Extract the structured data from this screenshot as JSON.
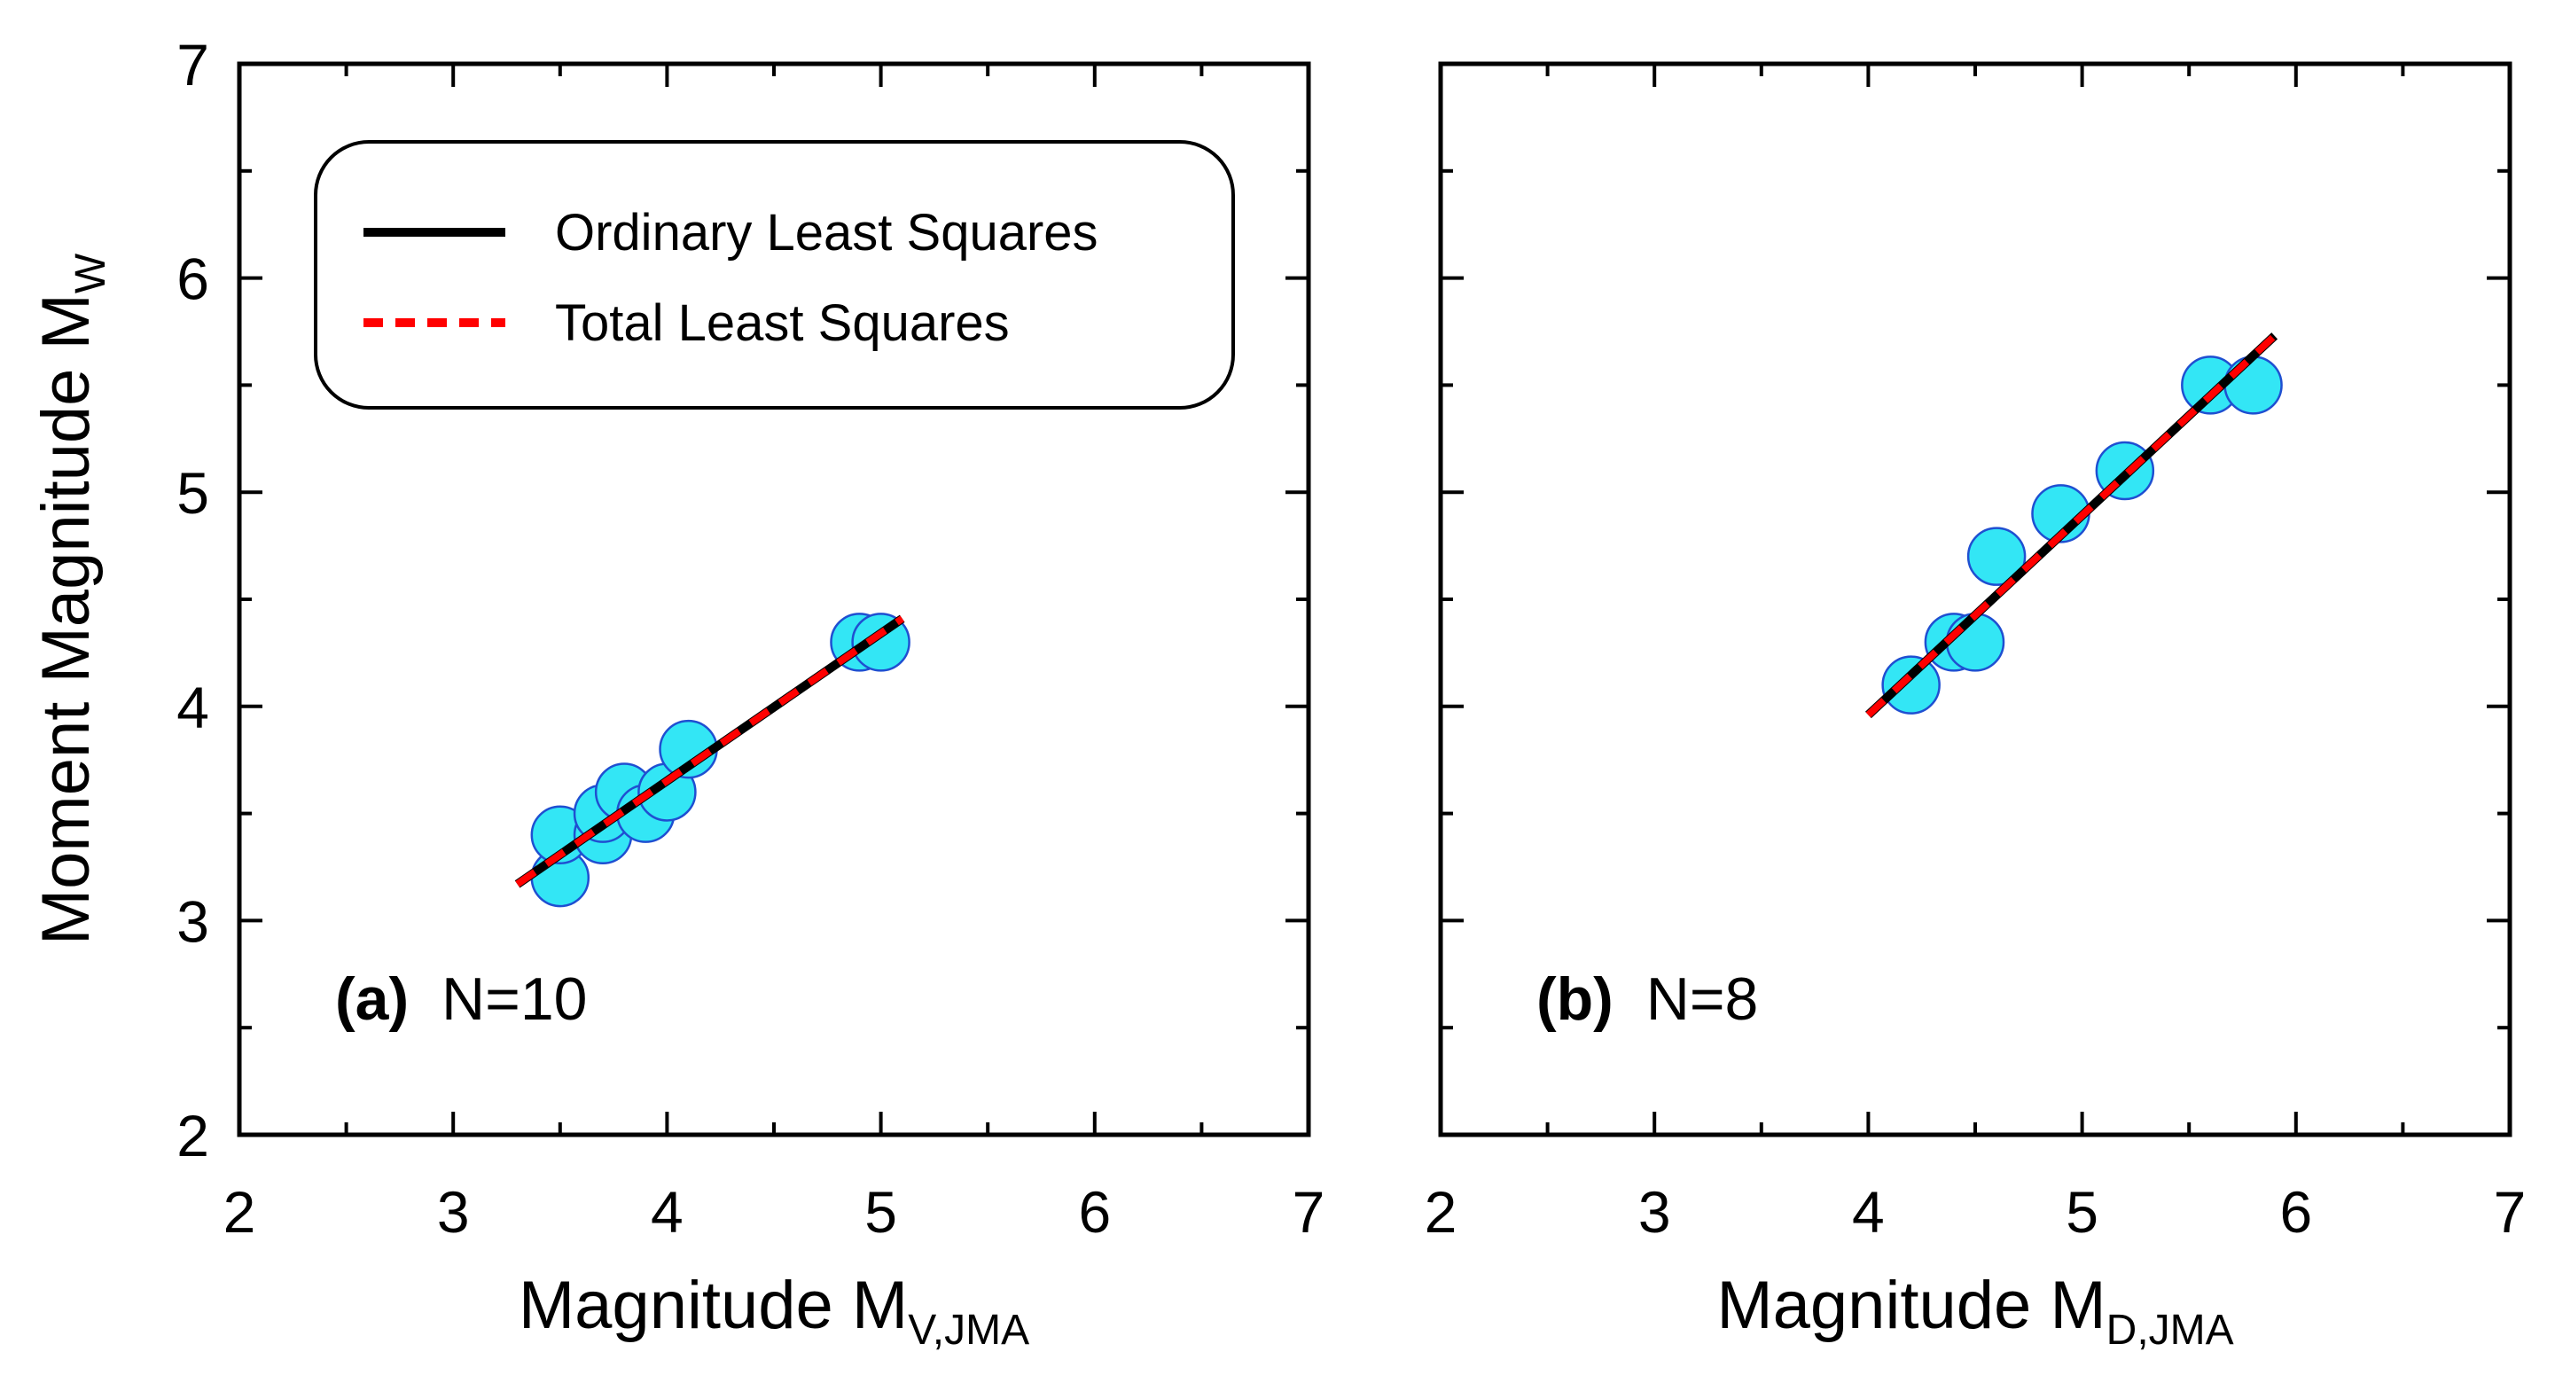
{
  "chart_data": [
    {
      "id": "a",
      "type": "scatter",
      "panel_label": "(a)",
      "count_label": "N=10",
      "xlabel_main": "Magnitude M",
      "xlabel_sub": "V,JMA",
      "ylabel_main": "Moment Magnitude M",
      "ylabel_sub": "W",
      "xlim": [
        2,
        7
      ],
      "ylim": [
        2,
        7
      ],
      "xticks": [
        "2",
        "3",
        "4",
        "5",
        "6",
        "7"
      ],
      "yticks": [
        "2",
        "3",
        "4",
        "5",
        "6",
        "7"
      ],
      "points": [
        {
          "x": 3.5,
          "y": 3.2
        },
        {
          "x": 3.5,
          "y": 3.4
        },
        {
          "x": 3.7,
          "y": 3.4
        },
        {
          "x": 3.7,
          "y": 3.5
        },
        {
          "x": 3.8,
          "y": 3.6
        },
        {
          "x": 3.9,
          "y": 3.5
        },
        {
          "x": 4.0,
          "y": 3.6
        },
        {
          "x": 4.1,
          "y": 3.8
        },
        {
          "x": 4.9,
          "y": 4.3
        },
        {
          "x": 5.0,
          "y": 4.3
        }
      ],
      "series": [
        {
          "name": "Ordinary Least Squares",
          "style": "solid",
          "color": "#000000",
          "x": [
            3.3,
            5.1
          ],
          "y": [
            3.17,
            4.41
          ]
        },
        {
          "name": "Total Least Squares",
          "style": "dashed",
          "color": "#ff0000",
          "x": [
            3.3,
            5.1
          ],
          "y": [
            3.17,
            4.41
          ]
        }
      ]
    },
    {
      "id": "b",
      "type": "scatter",
      "panel_label": "(b)",
      "count_label": "N=8",
      "xlabel_main": "Magnitude M",
      "xlabel_sub": "D,JMA",
      "xlim": [
        2,
        7
      ],
      "ylim": [
        2,
        7
      ],
      "xticks": [
        "2",
        "3",
        "4",
        "5",
        "6",
        "7"
      ],
      "points": [
        {
          "x": 4.2,
          "y": 4.1
        },
        {
          "x": 4.4,
          "y": 4.3
        },
        {
          "x": 4.5,
          "y": 4.3
        },
        {
          "x": 4.6,
          "y": 4.7
        },
        {
          "x": 4.9,
          "y": 4.9
        },
        {
          "x": 5.2,
          "y": 5.1
        },
        {
          "x": 5.6,
          "y": 5.5
        },
        {
          "x": 5.8,
          "y": 5.5
        }
      ],
      "series": [
        {
          "name": "Ordinary Least Squares",
          "style": "solid",
          "color": "#000000",
          "x": [
            4.0,
            5.9
          ],
          "y": [
            3.96,
            5.73
          ]
        },
        {
          "name": "Total Least Squares",
          "style": "dashed",
          "color": "#ff0000",
          "x": [
            4.0,
            5.9
          ],
          "y": [
            3.96,
            5.73
          ]
        }
      ]
    }
  ],
  "legend": {
    "placement": "top-left of panel (a)",
    "entries": [
      {
        "label": "Ordinary Least Squares",
        "style": "solid",
        "color": "#000000"
      },
      {
        "label": "Total Least Squares",
        "style": "dashed",
        "color": "#ff0000"
      }
    ]
  },
  "colors": {
    "marker_fill": "#33e6f5",
    "marker_stroke": "#1f4fd1",
    "axis": "#000000"
  }
}
